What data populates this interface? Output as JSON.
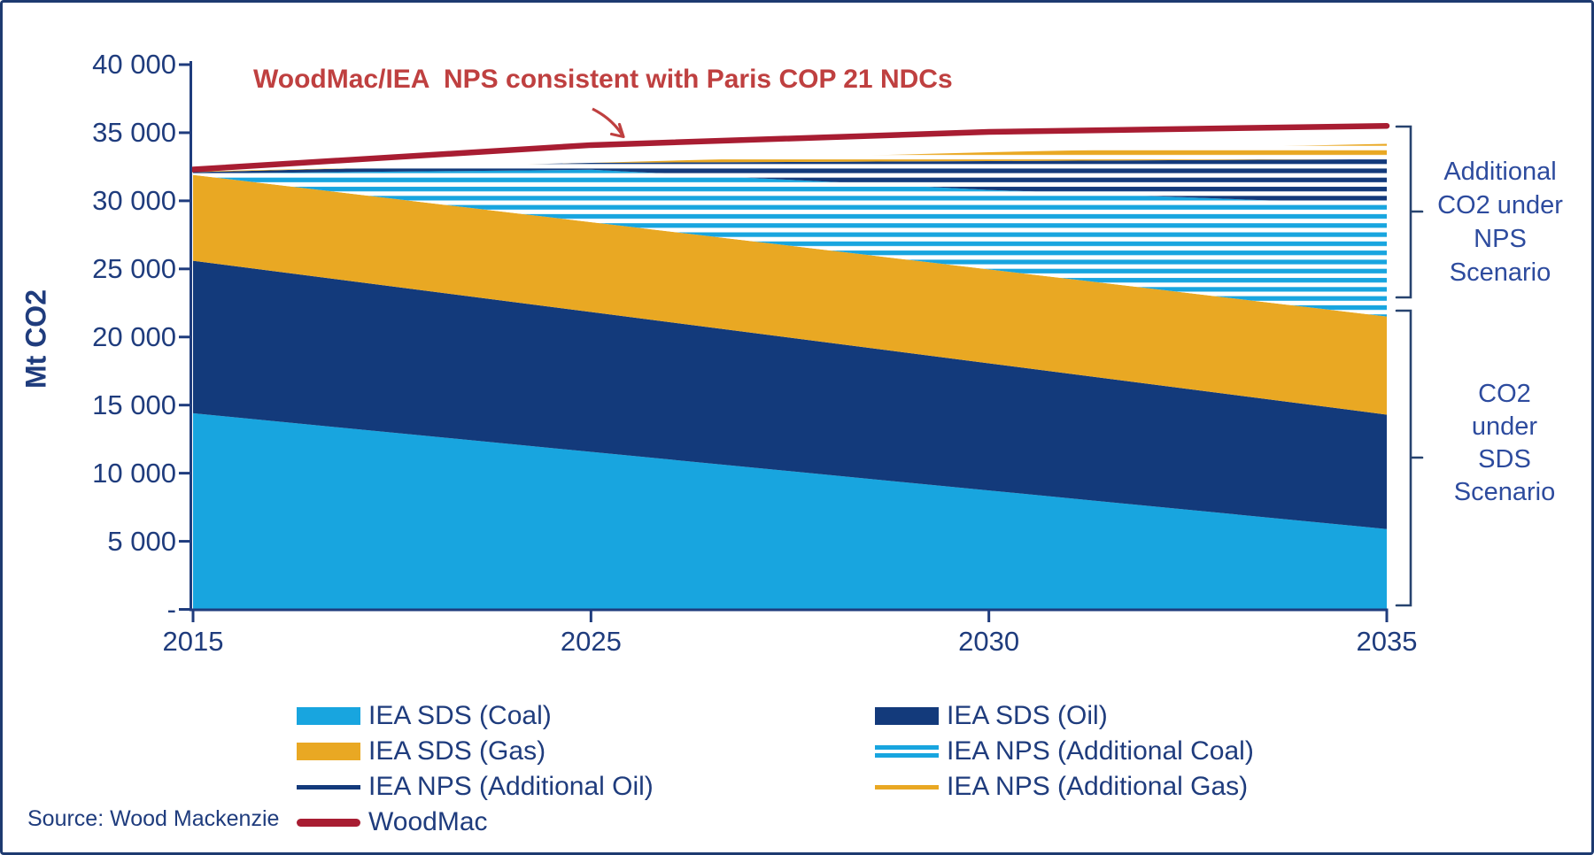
{
  "annotation": {
    "text": "WoodMac/IEA  NPS consistent with Paris COP 21 NDCs",
    "color": "#BF4040"
  },
  "axes": {
    "y_title": "Mt CO2",
    "y_tick_labels": [
      "40 000",
      "35 000",
      "30 000",
      "25 000",
      "20 000",
      "15 000",
      "10 000",
      "5 000",
      "-"
    ],
    "x_tick_labels": [
      "2015",
      "2025",
      "2030",
      "2035"
    ]
  },
  "right_labels": {
    "nps": "Additional\nCO2 under\nNPS\nScenario",
    "sds": "CO2\nunder\nSDS\nScenario"
  },
  "legend": {
    "columns": [
      [
        {
          "label": "IEA SDS (Coal)",
          "swatch": "fill",
          "color": "#18A5DF"
        },
        {
          "label": "IEA SDS (Gas)",
          "swatch": "fill",
          "color": "#E9A823"
        },
        {
          "label": "IEA NPS (Additional Oil)",
          "swatch": "line",
          "color": "#133A7B"
        },
        {
          "label": "WoodMac",
          "swatch": "thick-line",
          "color": "#A81D32"
        }
      ],
      [
        {
          "label": "IEA SDS (Oil)",
          "swatch": "fill",
          "color": "#133A7B"
        },
        {
          "label": "IEA NPS (Additional Coal)",
          "swatch": "double-line",
          "color": "#18A5DF"
        },
        {
          "label": "IEA NPS (Additional Gas)",
          "swatch": "line",
          "color": "#E9A823"
        }
      ]
    ]
  },
  "source": {
    "text": "Source: Wood Mackenzie"
  },
  "theme": {
    "axis_color": "#1F3C7D",
    "bracket_color": "#27436F",
    "border_color": "#1E3A70",
    "annotation_red": "#BF4040",
    "woodmac_red": "#A81D32"
  },
  "chart_data": {
    "type": "area",
    "stacked": true,
    "title": "WoodMac/IEA NPS consistent with Paris COP 21 NDCs",
    "ylabel": "Mt CO2",
    "xlabel": "",
    "categories": [
      "2015",
      "2025",
      "2030",
      "2035"
    ],
    "ylim": [
      0,
      40000
    ],
    "ytick_step": 5000,
    "grid": false,
    "legend_position": "bottom",
    "series": [
      {
        "name": "IEA SDS (Coal)",
        "style": "solid",
        "color": "#18A5DF",
        "values": [
          14400,
          11567,
          8733,
          5900
        ]
      },
      {
        "name": "IEA SDS (Oil)",
        "style": "solid",
        "color": "#133A7B",
        "values": [
          11200,
          10266,
          9334,
          8400
        ]
      },
      {
        "name": "IEA SDS (Gas)",
        "style": "solid",
        "color": "#E9A823",
        "values": [
          6300,
          6600,
          6900,
          7200
        ]
      },
      {
        "name": "IEA NPS (Additional Coal)",
        "style": "striped",
        "color": "#18A5DF",
        "values": [
          100,
          3847,
          5833,
          8200
        ]
      },
      {
        "name": "IEA NPS (Additional Oil)",
        "style": "striped",
        "color": "#133A7B",
        "values": [
          100,
          510,
          2120,
          3360
        ]
      },
      {
        "name": "IEA NPS (Additional Gas)",
        "style": "striped",
        "color": "#E9A823",
        "values": [
          50,
          0,
          650,
          1120
        ]
      }
    ],
    "line_series": {
      "name": "WoodMac",
      "color": "#A81D32",
      "values": [
        32300,
        34090,
        35060,
        35500
      ]
    },
    "annotations": [
      {
        "text": "WoodMac/IEA  NPS consistent with Paris COP 21 NDCs",
        "target": "WoodMac line"
      },
      {
        "text": "Additional CO2 under NPS Scenario",
        "span": "NPS striped bands, right side"
      },
      {
        "text": "CO2 under SDS Scenario",
        "span": "SDS solid bands, right side"
      }
    ]
  }
}
